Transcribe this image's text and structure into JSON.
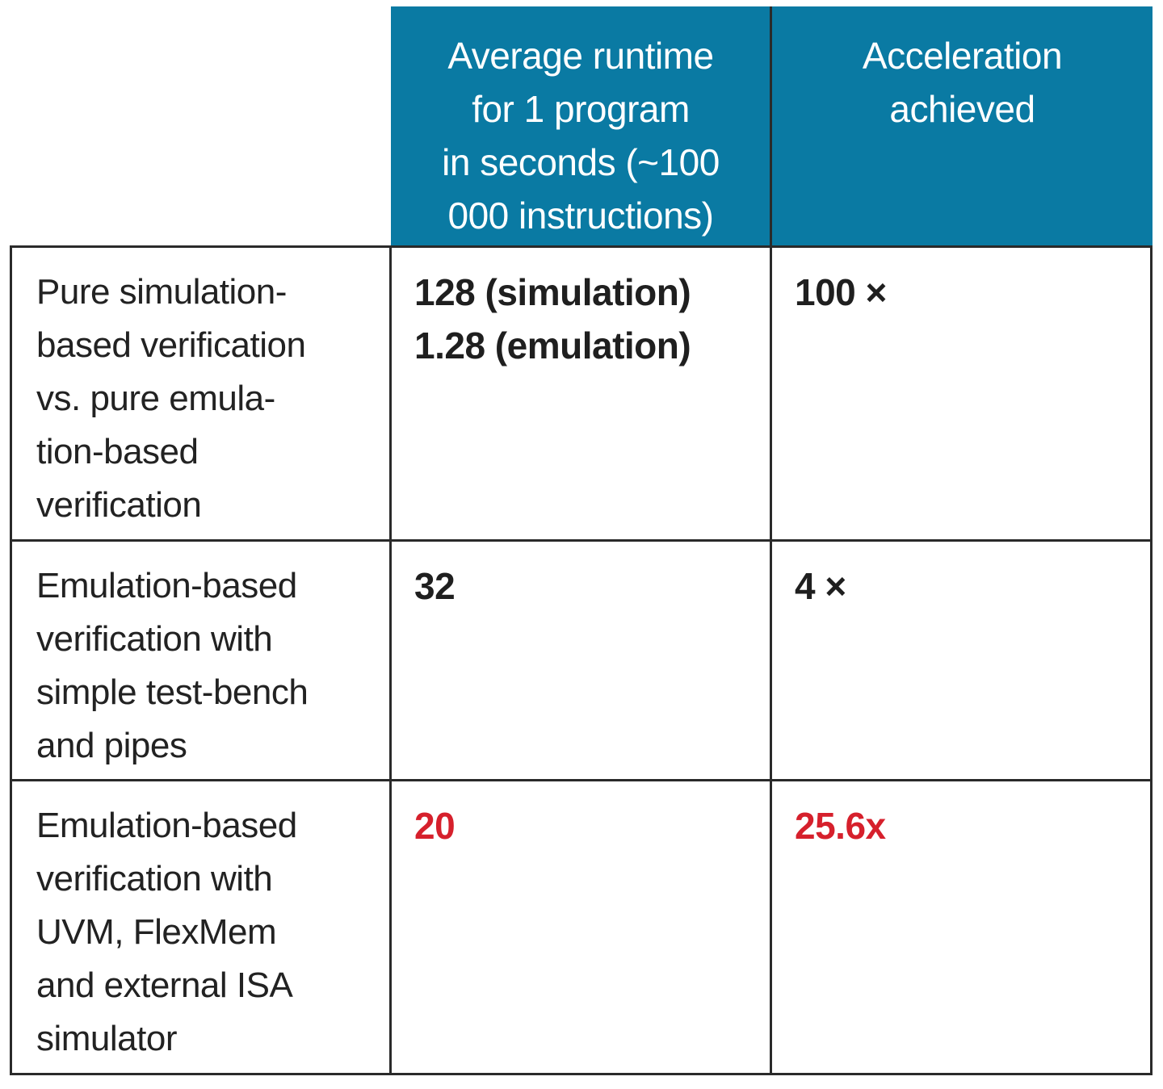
{
  "header": {
    "runtime": [
      "Average runtime",
      "for 1 program",
      "in seconds (~100",
      "000 instructions)"
    ],
    "acceleration": [
      "Acceleration",
      "achieved"
    ]
  },
  "rows": [
    {
      "label": [
        "Pure simulation-",
        "based verification",
        "vs. pure emula-",
        "tion-based",
        "verification"
      ],
      "runtime": [
        "128 (simulation)",
        "1.28 (emulation)"
      ],
      "acceleration": "100 ×",
      "highlight": false
    },
    {
      "label": [
        "Emulation-based",
        "verification with",
        "simple test-bench",
        "and pipes"
      ],
      "runtime": [
        "32"
      ],
      "acceleration": "4 ×",
      "highlight": false
    },
    {
      "label": [
        "Emulation-based",
        "verification with",
        "UVM, FlexMem",
        "and external ISA",
        "simulator"
      ],
      "runtime": [
        "20"
      ],
      "acceleration": "25.6x",
      "highlight": true
    }
  ],
  "colors": {
    "header_bg": "#0a7aa3",
    "header_text": "#ffffff",
    "highlight": "#d6202c",
    "border": "#2a2a2a"
  }
}
